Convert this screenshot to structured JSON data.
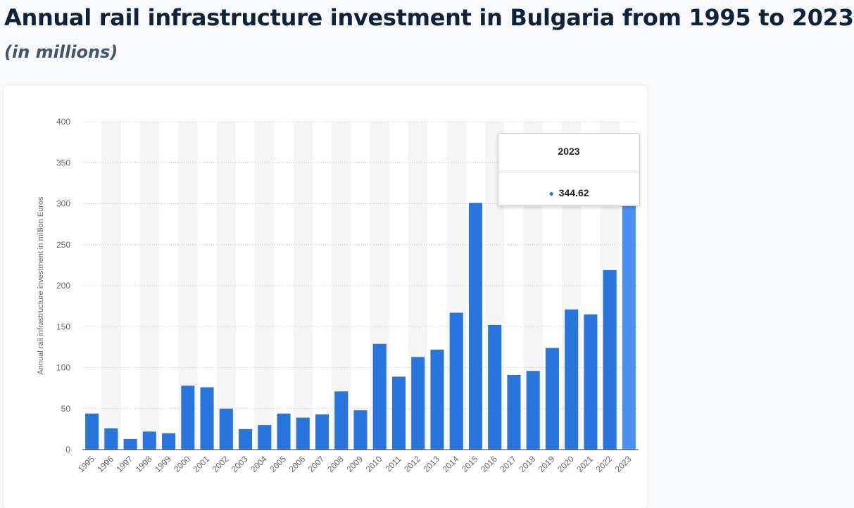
{
  "header": {
    "title": "Annual rail infrastructure investment in Bulgaria from 1995 to 2023",
    "subtitle": "(in millions)"
  },
  "colors": {
    "bar": "#2876dd",
    "bar_highlight": "#4a90f2",
    "band": "#f5f5f5",
    "grid": "#c8c8c8",
    "axis_text": "#666666"
  },
  "tooltip": {
    "category": "2023",
    "value": "344.62",
    "marker_icon": "bullet-dot-icon"
  },
  "chart_data": {
    "type": "bar",
    "title": "Annual rail infrastructure investment in Bulgaria from 1995 to 2023",
    "subtitle": "(in millions)",
    "xlabel": "",
    "ylabel": "Annual rail infrastructure investment in million Euros",
    "ylim": [
      0,
      400
    ],
    "yticks": [
      0,
      50,
      100,
      150,
      200,
      250,
      300,
      350,
      400
    ],
    "grid": true,
    "categories": [
      "1995",
      "1996",
      "1997",
      "1998",
      "1999",
      "2000",
      "2001",
      "2002",
      "2003",
      "2004",
      "2005",
      "2006",
      "2007",
      "2008",
      "2009",
      "2010",
      "2011",
      "2012",
      "2013",
      "2014",
      "2015",
      "2016",
      "2017",
      "2018",
      "2019",
      "2020",
      "2021",
      "2022",
      "2023"
    ],
    "values": [
      44,
      26,
      13,
      22,
      20,
      78,
      76,
      50,
      25,
      30,
      44,
      39,
      43,
      71,
      48,
      129,
      89,
      113,
      122,
      167,
      301,
      152,
      91,
      96,
      124,
      171,
      165,
      219,
      344.62
    ],
    "highlighted_category": "2023"
  }
}
